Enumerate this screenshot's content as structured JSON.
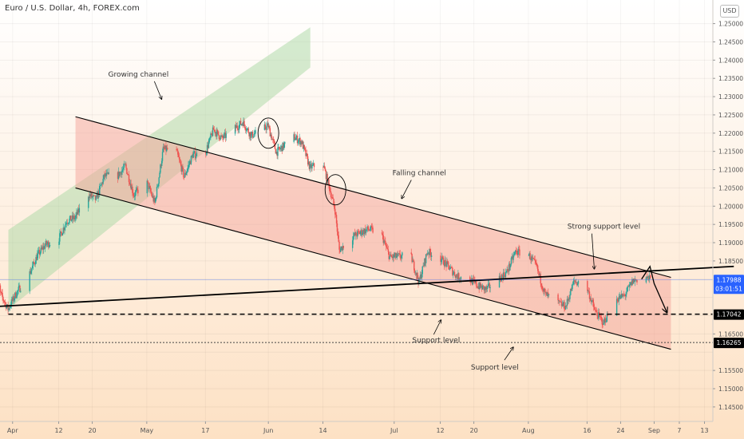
{
  "header": {
    "symbol_title": "Euro / U.S. Dollar, 4h, FOREX.com",
    "currency": "USD"
  },
  "colors": {
    "background_top": "#ffffff",
    "background_bottom": "#fde1c4",
    "up_candle": "#26a69a",
    "down_candle": "#ef5350",
    "growing_channel_fill": "#a9d8a4",
    "falling_channel_fill": "#f4a39a",
    "price_tag": "#2962ff",
    "level_tag": "#000000"
  },
  "chart_data": {
    "type": "candlestick",
    "instrument": "EUR/USD",
    "timeframe": "4h",
    "x_axis": {
      "type": "date",
      "range": [
        "2021-03-29",
        "2021-09-15"
      ],
      "tick_labels": [
        {
          "date": "2021-04-01",
          "label": "Apr"
        },
        {
          "date": "2021-04-12",
          "label": "12"
        },
        {
          "date": "2021-04-20",
          "label": "20"
        },
        {
          "date": "2021-05-03",
          "label": "May"
        },
        {
          "date": "2021-05-17",
          "label": "17"
        },
        {
          "date": "2021-06-01",
          "label": "Jun"
        },
        {
          "date": "2021-06-14",
          "label": "14"
        },
        {
          "date": "2021-07-01",
          "label": "Jul"
        },
        {
          "date": "2021-07-12",
          "label": "12"
        },
        {
          "date": "2021-07-20",
          "label": "20"
        },
        {
          "date": "2021-08-02",
          "label": "Aug"
        },
        {
          "date": "2021-08-16",
          "label": "16"
        },
        {
          "date": "2021-08-24",
          "label": "24"
        },
        {
          "date": "2021-09-01",
          "label": "Sep"
        },
        {
          "date": "2021-09-07",
          "label": "7"
        },
        {
          "date": "2021-09-13",
          "label": "13"
        }
      ]
    },
    "y_axis": {
      "range": [
        1.143,
        1.2545
      ],
      "ticks": [
        1.25,
        1.245,
        1.24,
        1.235,
        1.23,
        1.225,
        1.22,
        1.215,
        1.21,
        1.205,
        1.2,
        1.195,
        1.19,
        1.185,
        1.18,
        1.175,
        1.17,
        1.165,
        1.16,
        1.155,
        1.15,
        1.145
      ],
      "tick_labels": [
        "1.25000",
        "1.24500",
        "1.24000",
        "1.23500",
        "1.23000",
        "1.22500",
        "1.22000",
        "1.21500",
        "1.21000",
        "1.20500",
        "1.20000",
        "1.19500",
        "1.19000",
        "1.18500",
        "1.18000",
        "1.17500",
        "1.17000",
        "1.16500",
        "1.16000",
        "1.15500",
        "1.15000",
        "1.14500"
      ],
      "hidden_tick_labels": [
        "1.18000",
        "1.17500",
        "1.17000",
        "1.16000"
      ]
    },
    "price_path": [
      [
        "2021-03-26",
        1.1785
      ],
      [
        "2021-03-29",
        1.1765
      ],
      [
        "2021-03-31",
        1.1718
      ],
      [
        "2021-04-02",
        1.1762
      ],
      [
        "2021-04-05",
        1.1812
      ],
      [
        "2021-04-07",
        1.1865
      ],
      [
        "2021-04-09",
        1.1895
      ],
      [
        "2021-04-12",
        1.1908
      ],
      [
        "2021-04-14",
        1.196
      ],
      [
        "2021-04-16",
        1.1968
      ],
      [
        "2021-04-19",
        1.2033
      ],
      [
        "2021-04-21",
        1.2018
      ],
      [
        "2021-04-23",
        1.2083
      ],
      [
        "2021-04-26",
        1.2082
      ],
      [
        "2021-04-28",
        1.211
      ],
      [
        "2021-04-30",
        1.203
      ],
      [
        "2021-05-03",
        1.2068
      ],
      [
        "2021-05-05",
        1.2008
      ],
      [
        "2021-05-07",
        1.2155
      ],
      [
        "2021-05-10",
        1.2155
      ],
      [
        "2021-05-12",
        1.208
      ],
      [
        "2021-05-14",
        1.214
      ],
      [
        "2021-05-17",
        1.2145
      ],
      [
        "2021-05-19",
        1.221
      ],
      [
        "2021-05-21",
        1.2185
      ],
      [
        "2021-05-24",
        1.2212
      ],
      [
        "2021-05-26",
        1.223
      ],
      [
        "2021-05-28",
        1.2193
      ],
      [
        "2021-06-01",
        1.222
      ],
      [
        "2021-06-03",
        1.2147
      ],
      [
        "2021-06-07",
        1.219
      ],
      [
        "2021-06-09",
        1.2176
      ],
      [
        "2021-06-11",
        1.2105
      ],
      [
        "2021-06-14",
        1.212
      ],
      [
        "2021-06-16",
        1.2035
      ],
      [
        "2021-06-17",
        1.1988
      ],
      [
        "2021-06-18",
        1.188
      ],
      [
        "2021-06-21",
        1.1915
      ],
      [
        "2021-06-23",
        1.1928
      ],
      [
        "2021-06-25",
        1.1937
      ],
      [
        "2021-06-28",
        1.1925
      ],
      [
        "2021-06-30",
        1.186
      ],
      [
        "2021-07-02",
        1.1862
      ],
      [
        "2021-07-05",
        1.1865
      ],
      [
        "2021-07-07",
        1.1792
      ],
      [
        "2021-07-09",
        1.1875
      ],
      [
        "2021-07-12",
        1.1858
      ],
      [
        "2021-07-14",
        1.1835
      ],
      [
        "2021-07-16",
        1.1808
      ],
      [
        "2021-07-19",
        1.18
      ],
      [
        "2021-07-21",
        1.1782
      ],
      [
        "2021-07-23",
        1.1772
      ],
      [
        "2021-07-26",
        1.18
      ],
      [
        "2021-07-28",
        1.182
      ],
      [
        "2021-07-30",
        1.1875
      ],
      [
        "2021-08-02",
        1.187
      ],
      [
        "2021-08-04",
        1.1835
      ],
      [
        "2021-08-06",
        1.176
      ],
      [
        "2021-08-09",
        1.1735
      ],
      [
        "2021-08-11",
        1.1725
      ],
      [
        "2021-08-13",
        1.1795
      ],
      [
        "2021-08-16",
        1.1778
      ],
      [
        "2021-08-18",
        1.1712
      ],
      [
        "2021-08-20",
        1.168
      ],
      [
        "2021-08-23",
        1.1745
      ],
      [
        "2021-08-25",
        1.1755
      ],
      [
        "2021-08-27",
        1.1795
      ],
      [
        "2021-08-30",
        1.1807
      ],
      [
        "2021-08-31",
        1.18
      ]
    ],
    "drawings": {
      "growing_channel": {
        "label": "Growing channel",
        "lower": [
          [
            "2021-03-31",
            1.1718
          ],
          [
            "2021-06-11",
            1.238
          ]
        ],
        "upper": [
          [
            "2021-03-31",
            1.1935
          ],
          [
            "2021-06-11",
            1.249
          ]
        ]
      },
      "falling_channel": {
        "label": "Falling channel",
        "upper": [
          [
            "2021-04-16",
            1.2245
          ],
          [
            "2021-09-05",
            1.1805
          ]
        ],
        "lower": [
          [
            "2021-04-16",
            1.205
          ],
          [
            "2021-09-05",
            1.1608
          ]
        ],
        "extend_to": "2021-09-05"
      },
      "trendline": [
        [
          "2021-03-20",
          1.172
        ],
        [
          "2021-09-20",
          1.1835
        ]
      ],
      "strong_support_label": "Strong support level",
      "support_level_1": {
        "value": 1.17042,
        "label": "Support level",
        "tag": "1.17042",
        "style": "dashed"
      },
      "support_level_2": {
        "value": 1.16265,
        "label": "Support level",
        "tag": "1.16265",
        "style": "dotted"
      },
      "current_price": {
        "value": 1.17988,
        "tag": "1.17988",
        "countdown": "03:01:51"
      },
      "circles": [
        [
          "2021-06-01",
          1.22
        ],
        [
          "2021-06-17",
          1.2045
        ]
      ],
      "projection": [
        [
          "2021-08-29",
          1.18
        ],
        [
          "2021-08-31",
          1.1835
        ],
        [
          "2021-09-01",
          1.1788
        ],
        [
          "2021-09-04",
          1.171
        ]
      ]
    }
  }
}
